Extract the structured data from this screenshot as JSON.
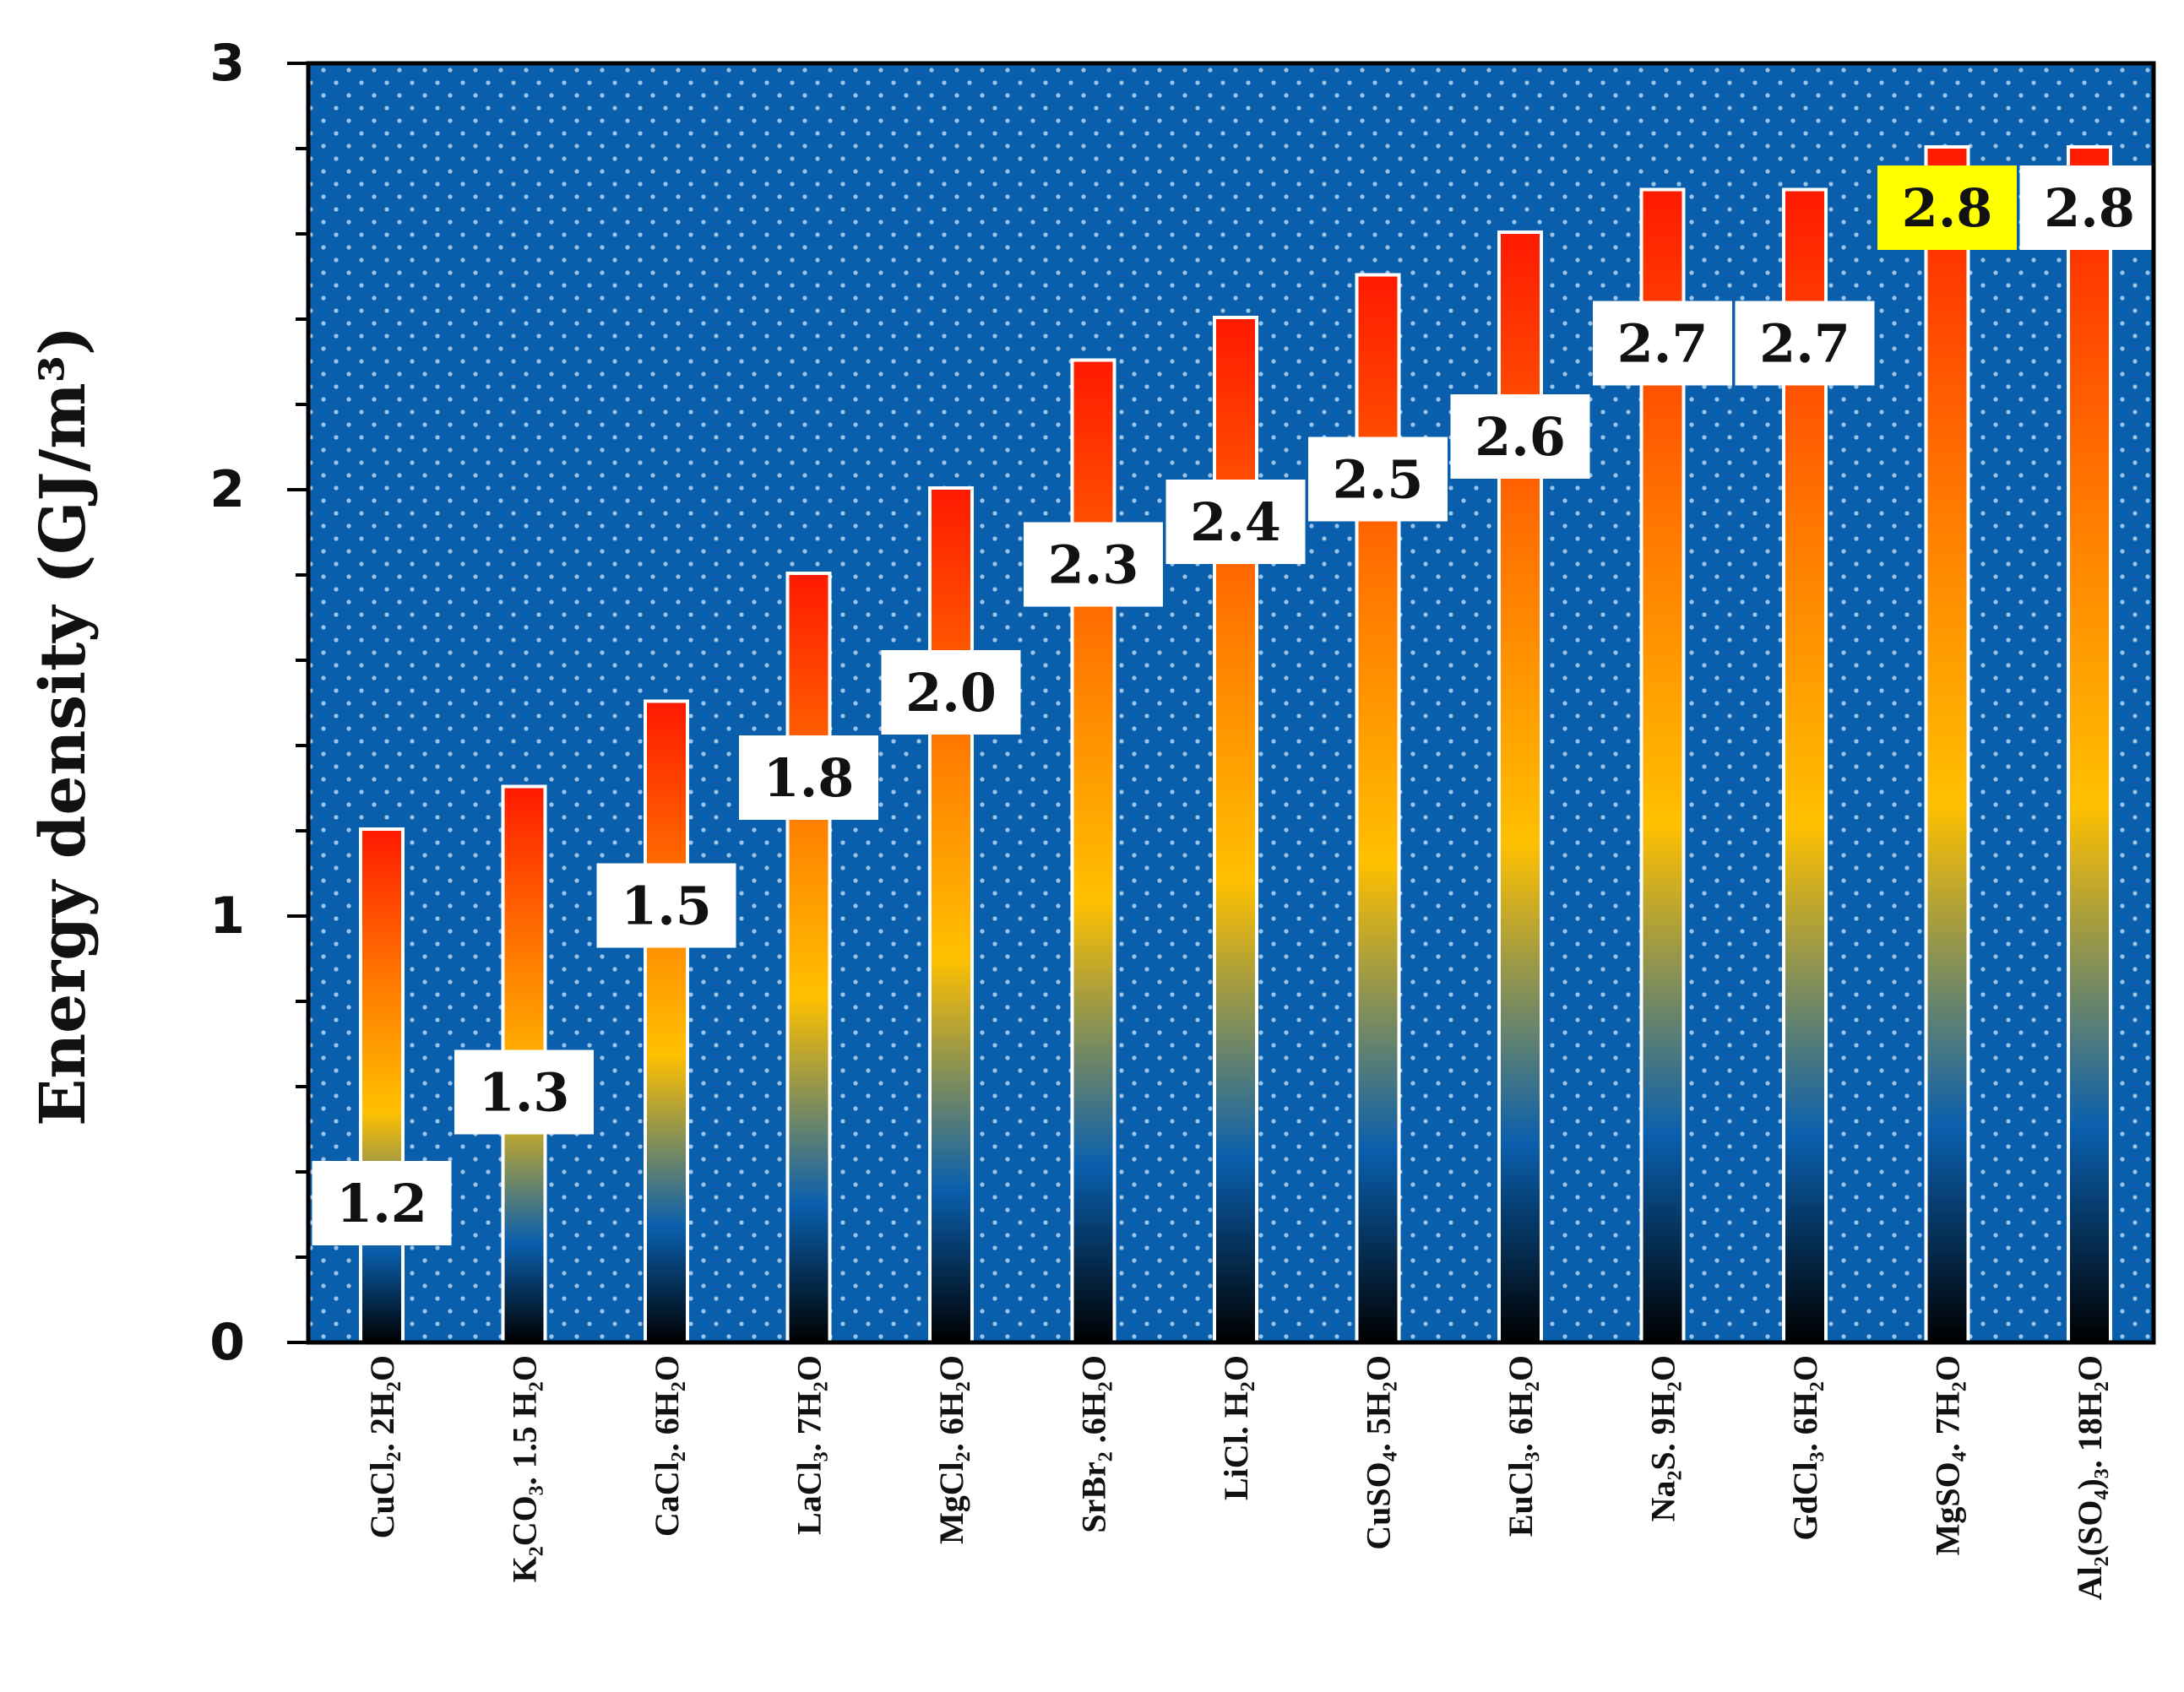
{
  "chart_data": {
    "type": "bar",
    "title": "",
    "xlabel": "",
    "ylabel": "Energy density (GJ/m³)",
    "ylim": [
      0,
      3
    ],
    "yticks": [
      "0",
      "1",
      "2",
      "3"
    ],
    "categories": [
      "CuCl₂. 2H₂O",
      "K₂CO₃. 1.5 H₂O",
      "CaCl₂. 6H₂O",
      "LaCl₃. 7H₂O",
      "MgCl₂. 6H₂O",
      "SrBr₂ .6H₂O",
      "LiCl. H₂O",
      "CuSO₄. 5H₂O",
      "EuCl₃. 6H₂O",
      "Na₂S. 9H₂O",
      "GdCl₃. 6H₂O",
      "MgSO₄. 7H₂O",
      "Al₂(SO₄)₃. 18H₂O"
    ],
    "values": [
      1.2,
      1.3,
      1.5,
      1.8,
      2.0,
      2.3,
      2.4,
      2.5,
      2.6,
      2.7,
      2.7,
      2.8,
      2.8
    ],
    "value_labels": [
      "1.2",
      "1.3",
      "1.5",
      "1.8",
      "2.0",
      "2.3",
      "2.4",
      "2.5",
      "2.6",
      "2.7",
      "2.7",
      "2.8",
      "2.8"
    ],
    "highlighted_index": 11,
    "colors": {
      "plot_background": "#0a5fad",
      "dot_pattern": "#9cc3e8",
      "bar_top": "#ff1a00",
      "bar_mid_orange": "#ff7a00",
      "bar_mid_yellow": "#ffc000",
      "bar_mid_blue": "#0a5fad",
      "bar_bottom": "#000000",
      "label_box": "#ffffff",
      "label_highlight": "#ffff00",
      "axis": "#000000"
    }
  }
}
